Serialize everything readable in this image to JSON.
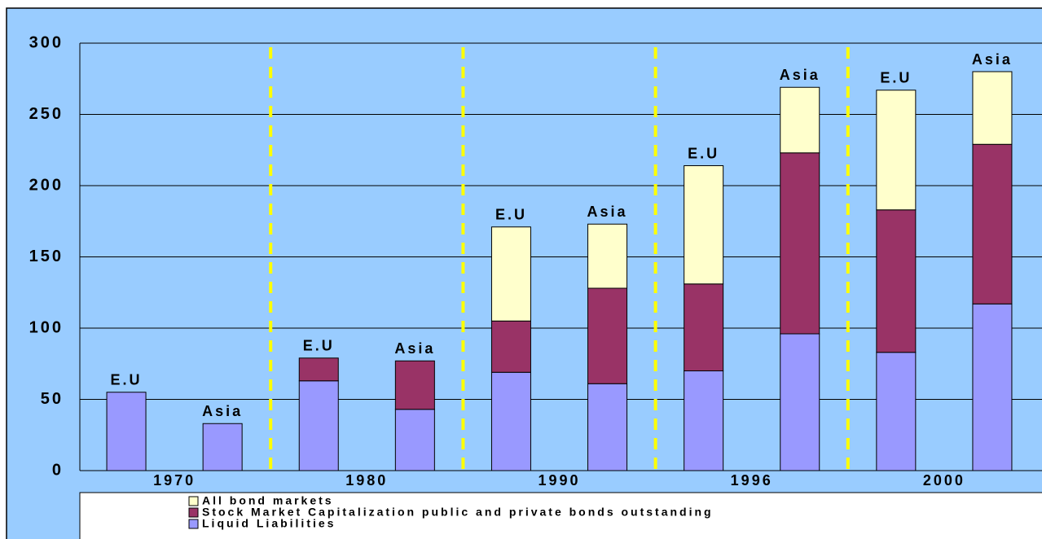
{
  "chart_data": {
    "type": "stacked_bar",
    "categories": [
      "E.U",
      "Asia",
      "E.U",
      "Asia",
      "E.U",
      "Asia",
      "E.U",
      "Asia",
      "E.U",
      "Asia"
    ],
    "groups": [
      "1970",
      "1980",
      "1990",
      "1996",
      "2000"
    ],
    "series": [
      {
        "name": "Liquid Liabilities",
        "color": "#9999ff",
        "values": [
          55,
          33,
          63,
          43,
          69,
          61,
          70,
          96,
          83,
          117
        ]
      },
      {
        "name": "Stock Market Capitalization public and private bonds outstanding",
        "color": "#993366",
        "values": [
          0,
          0,
          16,
          34,
          36,
          67,
          61,
          127,
          100,
          112
        ]
      },
      {
        "name": "All bond markets",
        "color": "#ffffcc",
        "values": [
          0,
          0,
          0,
          0,
          66,
          45,
          83,
          46,
          84,
          51
        ]
      }
    ],
    "ylim": [
      0,
      300
    ],
    "yticks": [
      0,
      50,
      100,
      150,
      200,
      250,
      300
    ],
    "grid": true
  }
}
